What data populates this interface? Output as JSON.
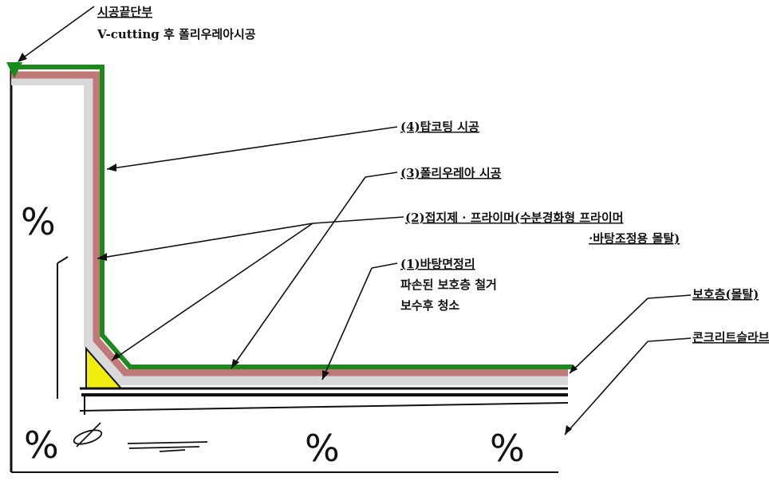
{
  "title": {
    "line1": "시공끝단부",
    "line2": "V-cutting 후 폴리우레아시공"
  },
  "callouts": {
    "l4": "(4)탑코팅 시공",
    "l3": "(3)폴리우레아 시공",
    "l2a": "(2)접지제 · 프라이머(수분경화형 프라이머",
    "l2b": "·바탕조정용 몰탈)",
    "l1a": "(1)바탕면정리",
    "l1b": "파손된 보호층 철거",
    "l1c": "보수후 청소",
    "protect": "보호층(몰탈)",
    "slab": "콘크리트슬라브"
  },
  "hatch_symbol": "%",
  "colors": {
    "top_coat": "#1a8a1a",
    "polyurea": "#c07878",
    "primer": "#d9d9d9",
    "fillet": "#f2ee10",
    "substrate": "#111111"
  }
}
